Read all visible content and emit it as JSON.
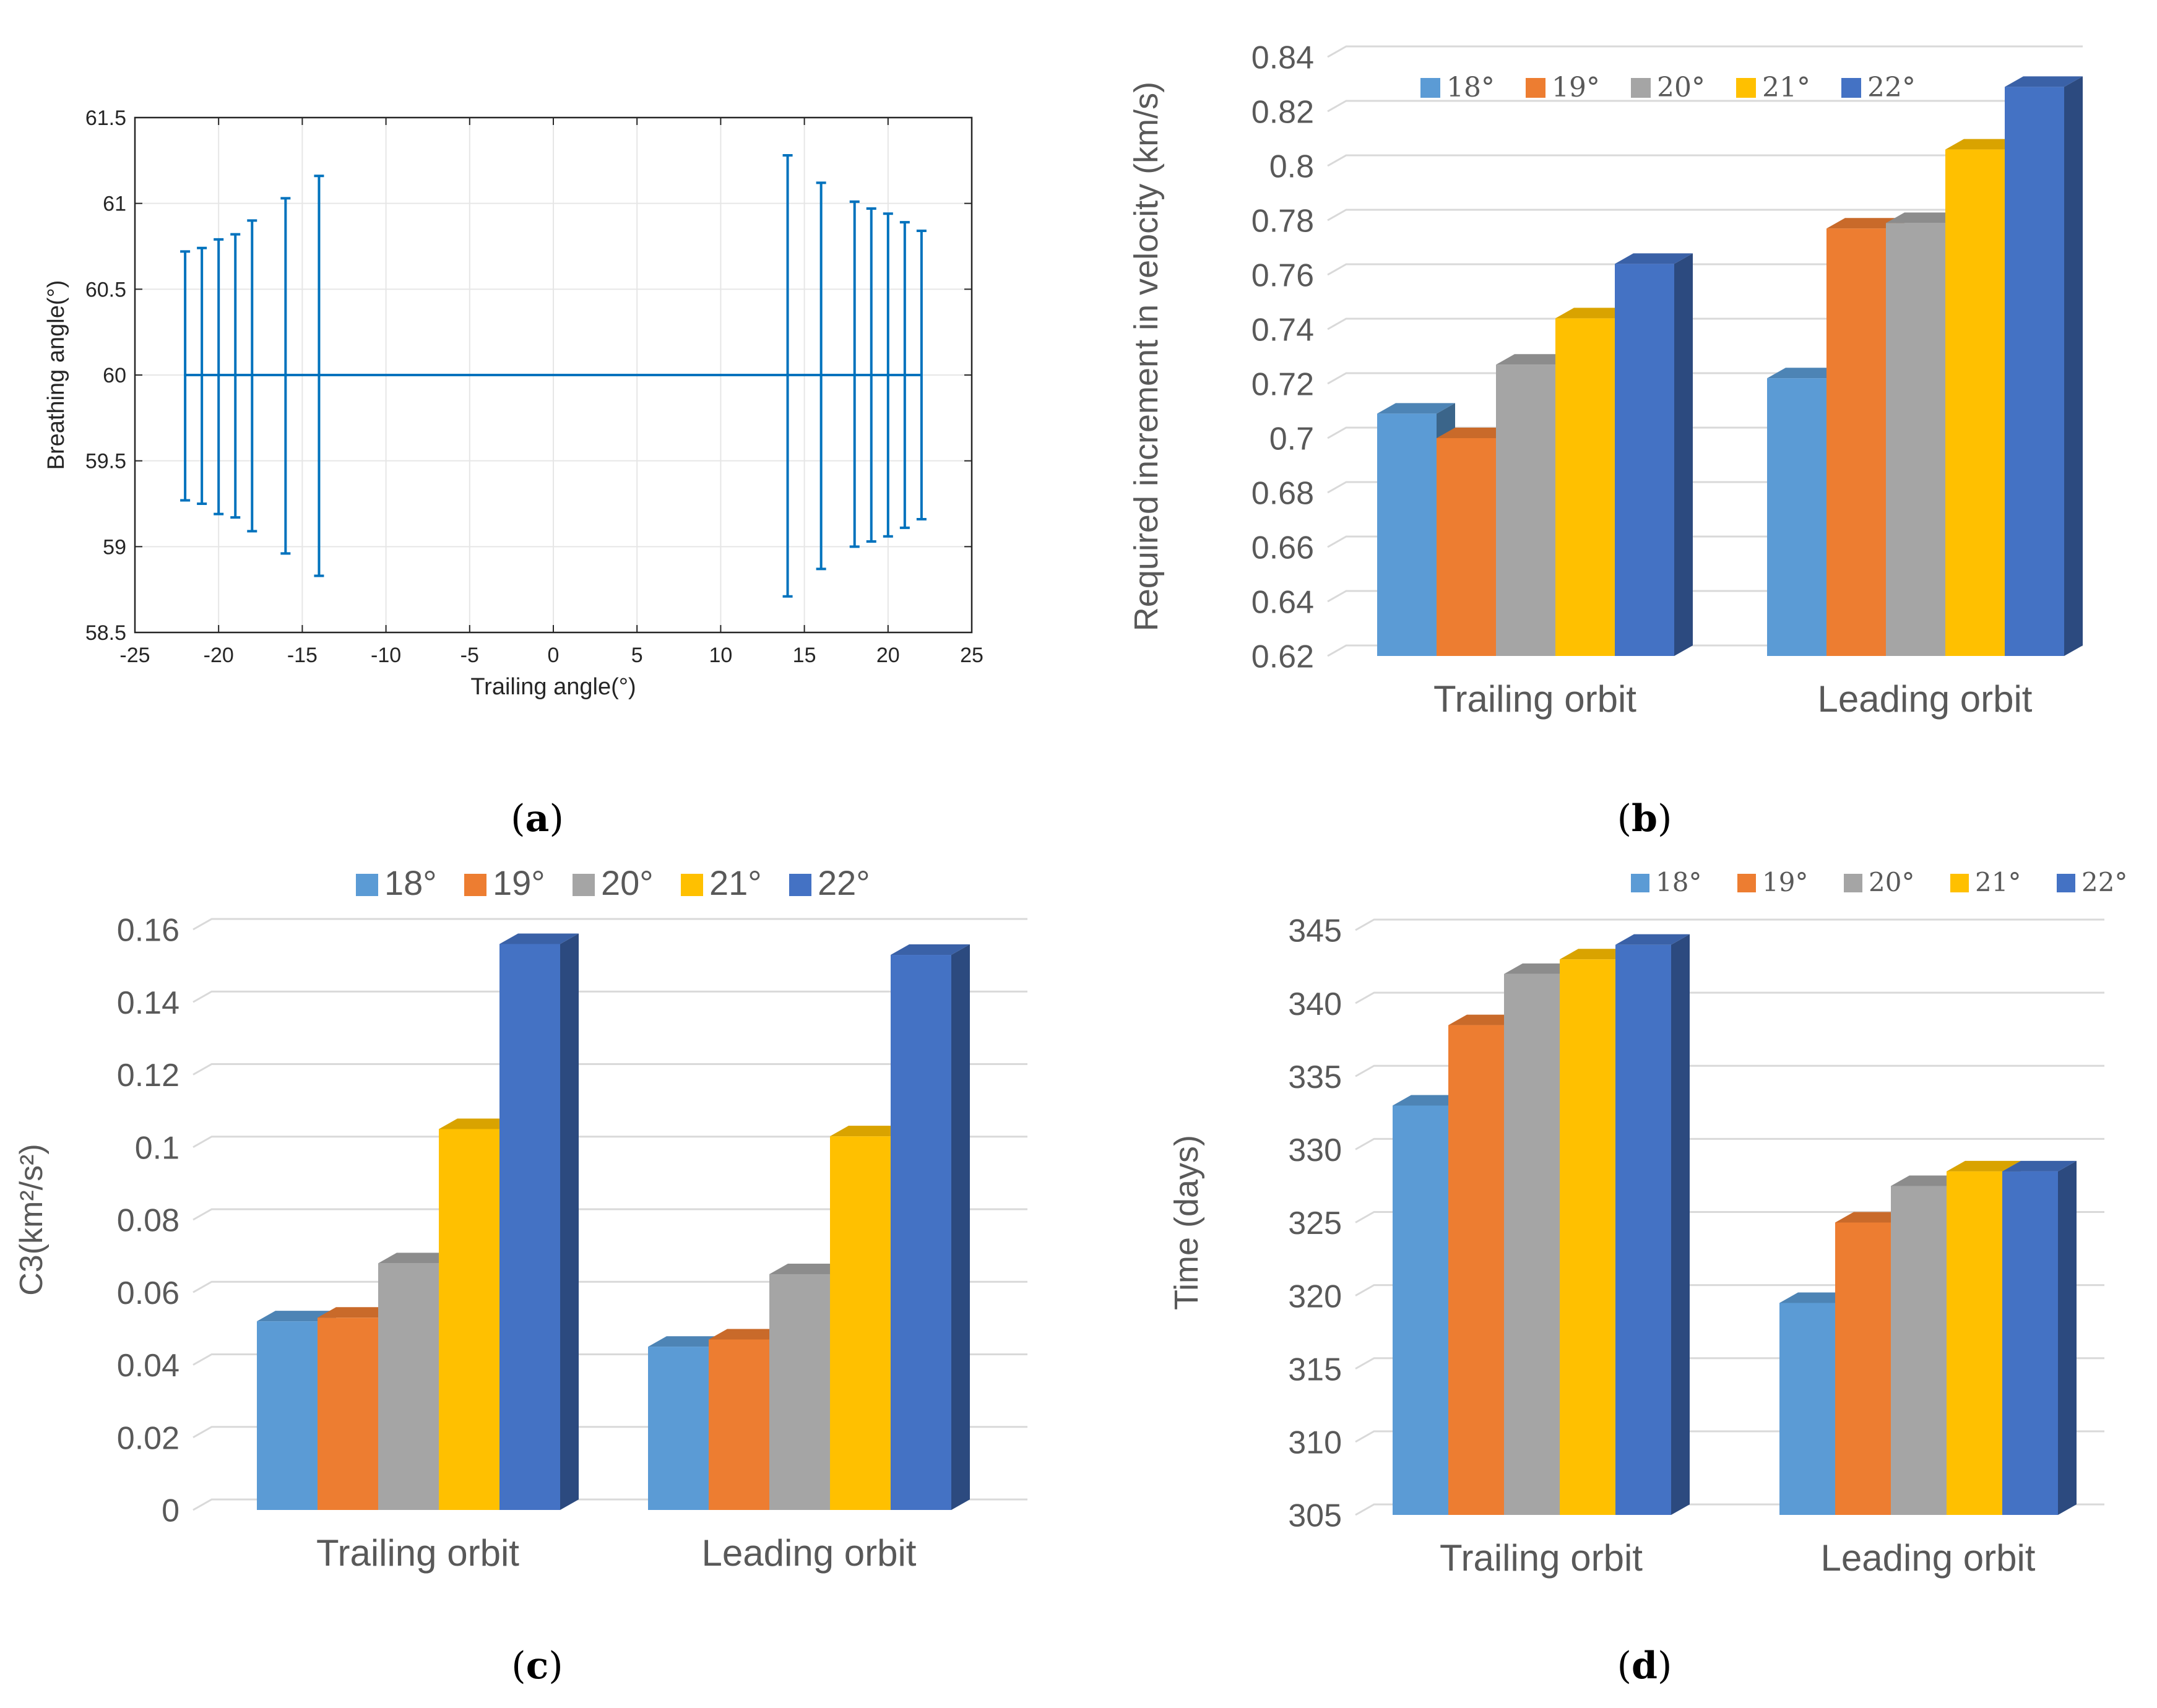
{
  "figure": {
    "colors": {
      "s18": "#5b9bd5",
      "s19": "#ed7d31",
      "s20": "#a5a5a5",
      "s21": "#ffc000",
      "s22": "#4472c4",
      "line": "#0072bd",
      "grid": "#d9d9d9",
      "axis": "#000000",
      "text": "#595959"
    },
    "panel_labels": [
      "a",
      "b",
      "c",
      "d"
    ]
  },
  "chart_data": [
    {
      "id": "a",
      "type": "errorbar",
      "title": "",
      "xlabel": "Trailing angle(°)",
      "ylabel": "Breathing angle(°)",
      "xlim": [
        -25,
        25
      ],
      "ylim": [
        58.5,
        61.5
      ],
      "xticks": [
        "-25",
        "-20",
        "-15",
        "-10",
        "-5",
        "0",
        "5",
        "10",
        "15",
        "20",
        "25"
      ],
      "yticks": [
        "58.5",
        "59",
        "59.5",
        "60",
        "60.5",
        "61",
        "61.5"
      ],
      "grid": true,
      "x": [
        -22,
        -21,
        -20,
        -19,
        -18,
        -16,
        -14,
        14,
        16,
        18,
        19,
        20,
        21,
        22
      ],
      "y": [
        60,
        60,
        60,
        60,
        60,
        60,
        60,
        60,
        60,
        60,
        60,
        60,
        60,
        60
      ],
      "lower": [
        59.27,
        59.25,
        59.19,
        59.17,
        59.09,
        58.96,
        58.83,
        58.71,
        58.87,
        59.0,
        59.03,
        59.06,
        59.11,
        59.16
      ],
      "upper": [
        60.72,
        60.74,
        60.79,
        60.82,
        60.9,
        61.03,
        61.16,
        61.28,
        61.12,
        61.01,
        60.97,
        60.94,
        60.89,
        60.84
      ]
    },
    {
      "id": "b",
      "type": "bar",
      "style": "3d-clustered",
      "title": "",
      "xlabel": "",
      "ylabel": "Required increment in velocity (km/s)",
      "categories": [
        "Trailing orbit",
        "Leading orbit"
      ],
      "ylim": [
        0.62,
        0.84
      ],
      "yticks": [
        "0.62",
        "0.64",
        "0.66",
        "0.68",
        "0.7",
        "0.72",
        "0.74",
        "0.76",
        "0.78",
        "0.8",
        "0.82",
        "0.84"
      ],
      "legend": "top",
      "series": [
        {
          "name": "18°",
          "values": [
            0.709,
            0.722
          ]
        },
        {
          "name": "19°",
          "values": [
            0.7,
            0.777
          ]
        },
        {
          "name": "20°",
          "values": [
            0.727,
            0.779
          ]
        },
        {
          "name": "21°",
          "values": [
            0.744,
            0.806
          ]
        },
        {
          "name": "22°",
          "values": [
            0.764,
            0.829
          ]
        }
      ]
    },
    {
      "id": "c",
      "type": "bar",
      "style": "3d-clustered",
      "title": "",
      "xlabel": "",
      "ylabel": "C3(km²/s²)",
      "categories": [
        "Trailing orbit",
        "Leading orbit"
      ],
      "ylim": [
        0,
        0.16
      ],
      "yticks": [
        "0",
        "0.02",
        "0.04",
        "0.06",
        "0.08",
        "0.1",
        "0.12",
        "0.14",
        "0.16"
      ],
      "legend": "top",
      "series": [
        {
          "name": "18°",
          "values": [
            0.052,
            0.045
          ]
        },
        {
          "name": "19°",
          "values": [
            0.053,
            0.047
          ]
        },
        {
          "name": "20°",
          "values": [
            0.068,
            0.065
          ]
        },
        {
          "name": "21°",
          "values": [
            0.105,
            0.103
          ]
        },
        {
          "name": "22°",
          "values": [
            0.156,
            0.153
          ]
        }
      ]
    },
    {
      "id": "d",
      "type": "bar",
      "style": "3d-clustered",
      "title": "",
      "xlabel": "",
      "ylabel": "Time (days)",
      "categories": [
        "Trailing orbit",
        "Leading orbit"
      ],
      "ylim": [
        305,
        345
      ],
      "yticks": [
        "305",
        "310",
        "315",
        "320",
        "325",
        "330",
        "335",
        "340",
        "345"
      ],
      "legend": "top-right",
      "series": [
        {
          "name": "18°",
          "values": [
            333,
            319.5
          ]
        },
        {
          "name": "19°",
          "values": [
            338.5,
            325
          ]
        },
        {
          "name": "20°",
          "values": [
            342,
            327.5
          ]
        },
        {
          "name": "21°",
          "values": [
            343,
            328.5
          ]
        },
        {
          "name": "22°",
          "values": [
            344,
            328.5
          ]
        }
      ]
    }
  ]
}
